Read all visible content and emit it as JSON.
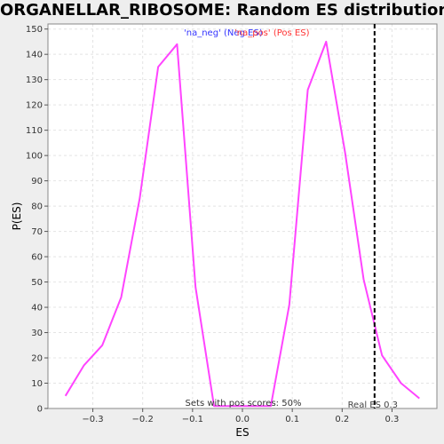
{
  "chart_data": {
    "type": "line",
    "title": "ORGANELLAR_RIBOSOME: Random ES distribution",
    "xlabel": "ES",
    "ylabel": "P(ES)",
    "xlim": [
      -0.39,
      0.39
    ],
    "ylim": [
      0,
      152
    ],
    "x_ticks": [
      -0.3,
      -0.2,
      -0.1,
      0.0,
      0.1,
      0.2,
      0.3
    ],
    "x_tick_labels": [
      "−0.3",
      "−0.2",
      "−0.1",
      "0.0",
      "0.1",
      "0.2",
      "0.3"
    ],
    "y_ticks": [
      0,
      10,
      20,
      30,
      40,
      50,
      60,
      70,
      80,
      90,
      100,
      110,
      120,
      130,
      140,
      150
    ],
    "y_tick_labels": [
      "0",
      "10",
      "20",
      "30",
      "40",
      "50",
      "60",
      "70",
      "80",
      "90",
      "100",
      "110",
      "120",
      "130",
      "140",
      "150"
    ],
    "grid": true,
    "line_color": "#ff44ff",
    "series": [
      {
        "x": [
          -0.355,
          -0.318,
          -0.281,
          -0.243,
          -0.206,
          -0.169,
          -0.131,
          -0.094,
          -0.057,
          0.057,
          0.094,
          0.131,
          0.168,
          0.206,
          0.243,
          0.28,
          0.318,
          0.355
        ],
        "y": [
          5,
          17,
          25,
          44,
          83,
          135,
          144,
          48,
          1,
          1,
          41,
          126,
          145,
          101,
          51,
          21,
          10,
          4
        ]
      }
    ],
    "real_es": {
      "x": 0.265,
      "label": "Real ES 0.3",
      "color": "#000000"
    },
    "legend": [
      {
        "label": "'na_neg' (Neg ES)",
        "color": "#3333ff"
      },
      {
        "label": "'na_pos' (Pos ES)",
        "color": "#ff3333"
      }
    ],
    "annotation": "Sets with pos scores: 50%"
  }
}
